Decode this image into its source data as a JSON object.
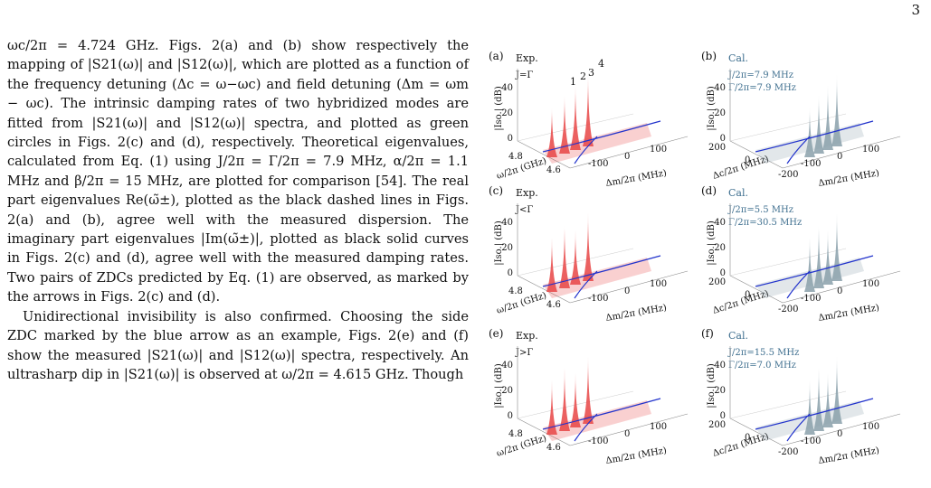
{
  "page_number": "3",
  "paragraphs": [
    "ωc/2π = 4.724 GHz. Figs. 2(a) and (b) show respectively the mapping of |S21(ω)| and |S12(ω)|, which are plotted as a function of the frequency detuning (Δc = ω−ωc) and field detuning (Δm = ωm − ωc). The intrinsic damping rates of two hybridized modes are fitted from |S21(ω)| and |S12(ω)| spectra, and plotted as green circles in Figs. 2(c) and (d), respectively. Theoretical eigenvalues, calculated from Eq. (1) using J/2π = Γ/2π = 7.9 MHz, α/2π = 1.1 MHz and β/2π = 15 MHz, are plotted for comparison [54]. The real part eigenvalues Re(ω̃±), plotted as the black dashed lines in Figs. 2(a) and (b), agree well with the measured dispersion. The imaginary part eigenvalues |Im(ω̃±)|, plotted as black solid curves in Figs. 2(c) and (d), agree well with the measured damping rates. Two pairs of ZDCs predicted by Eq. (1) are observed, as marked by the arrows in Figs. 2(c) and (d).",
    "Unidirectional invisibility is also confirmed. Choosing the side ZDC marked by the blue arrow as an example, Figs. 2(e) and (f) show the measured |S21(ω)| and |S12(ω)| spectra, respectively. An ultrasharp dip in |S21(ω)| is observed at ω/2π = 4.615 GHz. Though"
  ],
  "figure": {
    "panels": [
      {
        "tag": "(a)",
        "kind": "Exp.",
        "cond": "J=Γ",
        "color": "#e84545",
        "peaks": [
          "1",
          "2",
          "3",
          "4"
        ]
      },
      {
        "tag": "(b)",
        "kind": "Cal.",
        "cond": "J/2π=7.9 MHz",
        "cond2": "Γ/2π=7.9 MHz",
        "color": "#8aa0aa"
      },
      {
        "tag": "(c)",
        "kind": "Exp.",
        "cond": "J<Γ",
        "color": "#e84545"
      },
      {
        "tag": "(d)",
        "kind": "Cal.",
        "cond": "J/2π=5.5 MHz",
        "cond2": "Γ/2π=30.5 MHz",
        "color": "#8aa0aa"
      },
      {
        "tag": "(e)",
        "kind": "Exp.",
        "cond": "J>Γ",
        "color": "#e84545"
      },
      {
        "tag": "(f)",
        "kind": "Cal.",
        "cond": "J/2π=15.5 MHz",
        "cond2": "Γ/2π=7.0 MHz",
        "color": "#8aa0aa"
      }
    ],
    "ylabel": "|Iso.| (dB)",
    "z_ticks": [
      "0",
      "20",
      "40"
    ],
    "exp_y_ticks": [
      "4.8",
      "4.6"
    ],
    "exp_y_label": "ω/2π (GHz)",
    "cal_y_ticks": [
      "200",
      "0",
      "-200"
    ],
    "cal_y_label": "Δc/2π (MHz)",
    "x_ticks": [
      "-100",
      "0",
      "100"
    ],
    "x_label": "Δm/2π (MHz)"
  }
}
